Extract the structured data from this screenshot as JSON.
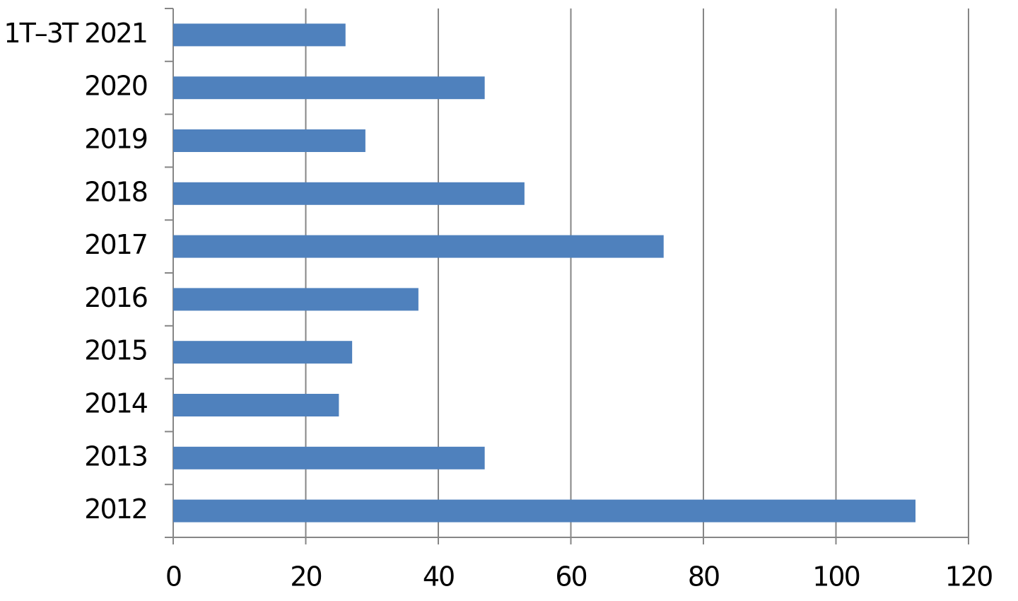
{
  "chart_data": {
    "type": "hbar",
    "categories": [
      "1T–3T 2021",
      "2020",
      "2019",
      "2018",
      "2017",
      "2016",
      "2015",
      "2014",
      "2013",
      "2012"
    ],
    "values": [
      26,
      47,
      29,
      53,
      74,
      37,
      27,
      25,
      47,
      112
    ],
    "color": "#4f81bd",
    "xlim": [
      0,
      120
    ],
    "xticks": [
      0,
      20,
      40,
      60,
      80,
      100,
      120
    ],
    "grid": true
  }
}
